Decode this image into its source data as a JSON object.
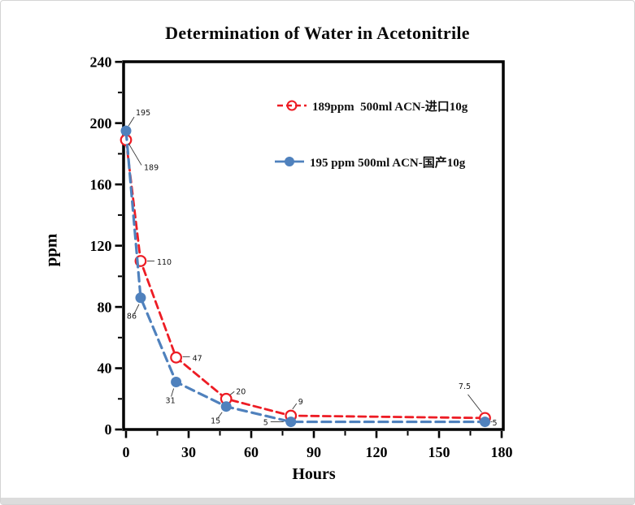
{
  "title": "Determination of Water in Acetonitrile",
  "frame": {
    "background": "#ffffff",
    "border_color": "#d4d4d4",
    "bottom_bar_color": "#dcdcdc"
  },
  "chart_data": {
    "type": "line",
    "title": "Determination of Water in Acetonitrile",
    "xlabel": "Hours",
    "ylabel": "ppm",
    "xlim": [
      0,
      180
    ],
    "ylim": [
      0,
      240
    ],
    "x_major_ticks": [
      0,
      30,
      60,
      90,
      120,
      150,
      180
    ],
    "x_minor_step": 15,
    "y_major_ticks": [
      0,
      40,
      80,
      120,
      160,
      200,
      240
    ],
    "y_minor_step": 20,
    "grid": false,
    "legend_position": "inside-upper-right",
    "axis_color": "#000000",
    "series": [
      {
        "name": "189ppm  500ml ACN-进口10g",
        "color": "#ED1C24",
        "line_style": "dashed",
        "marker": "open-circle",
        "x": [
          0,
          7,
          24,
          48,
          79,
          172
        ],
        "y": [
          189,
          110,
          47,
          20,
          9,
          7.5
        ],
        "point_labels": [
          "189",
          "110",
          "47",
          "20",
          "9",
          "7.5"
        ]
      },
      {
        "name": "195 ppm 500ml ACN-国产10g",
        "color": "#4F81BD",
        "line_style": "dashed",
        "marker": "filled-circle",
        "x": [
          0,
          7,
          24,
          48,
          79,
          172
        ],
        "y": [
          195,
          86,
          31,
          15,
          5,
          5
        ],
        "point_labels": [
          "195",
          "86",
          "31",
          "15",
          "5",
          "5"
        ]
      }
    ]
  }
}
